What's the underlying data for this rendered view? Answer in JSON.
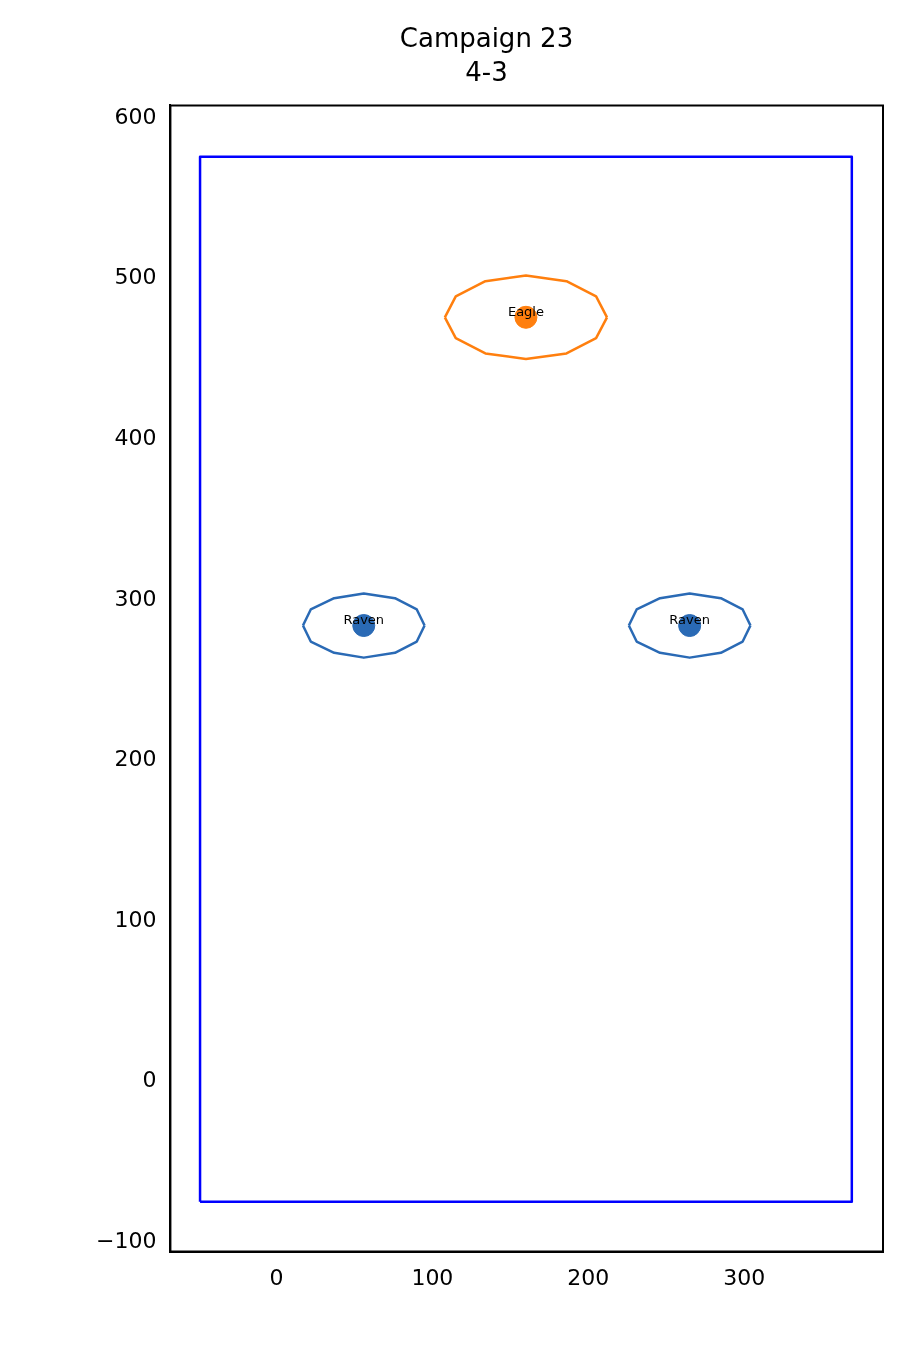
{
  "chart_data": {
    "type": "scatter",
    "title": "Campaign 23",
    "subtitle": "4-3",
    "xlim": [
      -68,
      389
    ],
    "ylim": [
      -106,
      608
    ],
    "xticks": [
      0,
      100,
      200,
      300
    ],
    "yticks": [
      {
        "value": -100,
        "label": "−100"
      },
      0,
      100,
      200,
      300,
      400,
      500,
      600
    ],
    "grid": false,
    "legend": false,
    "marker": "circle",
    "series": [
      {
        "type": "line",
        "color": "#0000ff",
        "marker": "none",
        "x": [
          -49,
          -49,
          369,
          369
        ],
        "values": [
          -75,
          576,
          576,
          -75
        ]
      },
      {
        "type": "line",
        "color": "#0000ff",
        "marker": "none",
        "x": [
          -49,
          369
        ],
        "values": [
          -75,
          -75
        ]
      },
      {
        "type": "line",
        "color": "#ff7f0e",
        "marker": "none",
        "x": [
          108,
          115,
          134,
          160,
          186,
          205,
          212
        ],
        "values": [
          476,
          489,
          498.5,
          502,
          498.5,
          489,
          476
        ]
      },
      {
        "type": "line",
        "color": "#ff7f0e",
        "marker": "none",
        "x": [
          108,
          115,
          134,
          160,
          186,
          205,
          212
        ],
        "values": [
          476,
          463,
          453.5,
          450,
          453.5,
          463,
          476
        ]
      },
      {
        "type": "line",
        "color": "#2a6ab5",
        "marker": "none",
        "x": [
          17,
          22,
          37,
          56,
          76,
          90,
          95
        ],
        "values": [
          284,
          294,
          301,
          304,
          301,
          294,
          284
        ]
      },
      {
        "type": "line",
        "color": "#2a6ab5",
        "marker": "none",
        "x": [
          17,
          22,
          37,
          56,
          76,
          90,
          95
        ],
        "values": [
          284,
          274,
          267,
          264,
          267,
          274,
          284
        ]
      },
      {
        "type": "line",
        "color": "#2a6ab5",
        "marker": "none",
        "x": [
          226,
          231,
          246,
          265,
          285,
          299,
          304
        ],
        "values": [
          284,
          294,
          301,
          304,
          301,
          294,
          284
        ]
      },
      {
        "type": "line",
        "color": "#2a6ab5",
        "marker": "none",
        "x": [
          226,
          231,
          246,
          265,
          285,
          299,
          304
        ],
        "values": [
          284,
          274,
          267,
          264,
          267,
          274,
          284
        ]
      },
      {
        "type": "scatter",
        "x": [
          56,
          160,
          265
        ],
        "values": [
          284,
          476,
          284
        ],
        "colors": [
          "#2a6ab5",
          "#ff7f0e",
          "#2a6ab5"
        ]
      }
    ],
    "annotations": [
      {
        "text": "Raven",
        "x": 56,
        "y": 284
      },
      {
        "text": "Eagle",
        "x": 160,
        "y": 476
      },
      {
        "text": "Raven",
        "x": 265,
        "y": 284
      }
    ]
  }
}
